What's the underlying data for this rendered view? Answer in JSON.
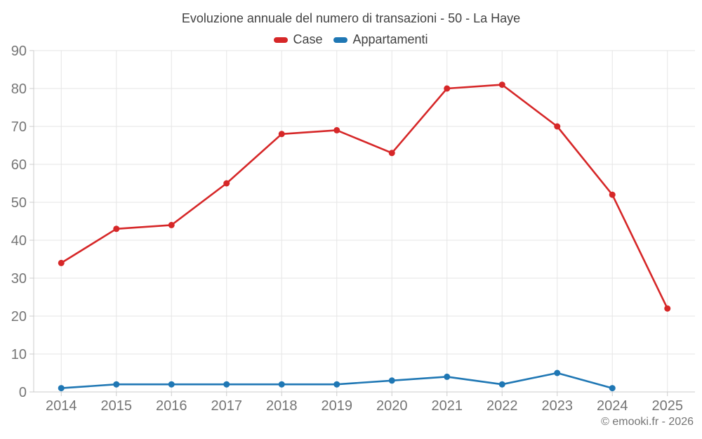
{
  "header": {
    "title": "Evoluzione annuale del numero di transazioni - 50 - La Haye"
  },
  "footer": {
    "copyright": "© emooki.fr - 2026"
  },
  "chart_data": {
    "type": "line",
    "title": "Evoluzione annuale del numero di transazioni - 50 - La Haye",
    "categories": [
      "2014",
      "2015",
      "2016",
      "2017",
      "2018",
      "2019",
      "2020",
      "2021",
      "2022",
      "2023",
      "2024",
      "2025"
    ],
    "series": [
      {
        "name": "Case",
        "color": "#d62728",
        "values": [
          34,
          43,
          44,
          55,
          68,
          69,
          63,
          80,
          81,
          70,
          52,
          22
        ]
      },
      {
        "name": "Appartamenti",
        "color": "#1f77b4",
        "values": [
          1,
          2,
          2,
          2,
          2,
          2,
          3,
          4,
          2,
          5,
          1,
          null
        ]
      }
    ],
    "xlabel": "",
    "ylabel": "",
    "ylim": [
      0,
      90
    ],
    "y_ticks": [
      0,
      10,
      20,
      30,
      40,
      50,
      60,
      70,
      80,
      90
    ],
    "grid": true,
    "legend_position": "top",
    "grid_color": "#e6e6e6",
    "axis_color": "#cccccc",
    "axis_label_color": "#757575",
    "title_color": "#424242"
  }
}
